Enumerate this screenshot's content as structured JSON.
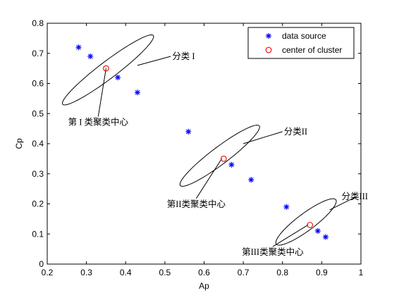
{
  "chart_data": {
    "type": "scatter",
    "xlabel": "Ap",
    "ylabel": "Cp",
    "xlim": [
      0.2,
      1.0
    ],
    "ylim": [
      0.0,
      0.8
    ],
    "xticks": [
      "0.2",
      "0.3",
      "0.4",
      "0.5",
      "0.6",
      "0.7",
      "0.8",
      "0.9",
      "1"
    ],
    "yticks": [
      "0",
      "0.1",
      "0.2",
      "0.3",
      "0.4",
      "0.5",
      "0.6",
      "0.7",
      "0.8"
    ],
    "grid": false,
    "legend_position": "top-right",
    "series": [
      {
        "name": "data source",
        "marker": "asterisk",
        "color": "#0000ff",
        "points": [
          {
            "x": 0.28,
            "y": 0.72
          },
          {
            "x": 0.31,
            "y": 0.69
          },
          {
            "x": 0.38,
            "y": 0.62
          },
          {
            "x": 0.43,
            "y": 0.57
          },
          {
            "x": 0.56,
            "y": 0.44
          },
          {
            "x": 0.67,
            "y": 0.33
          },
          {
            "x": 0.72,
            "y": 0.28
          },
          {
            "x": 0.81,
            "y": 0.19
          },
          {
            "x": 0.89,
            "y": 0.11
          },
          {
            "x": 0.91,
            "y": 0.09
          }
        ]
      },
      {
        "name": "center of cluster",
        "marker": "circle",
        "color": "#ff0000",
        "points": [
          {
            "x": 0.35,
            "y": 0.65
          },
          {
            "x": 0.65,
            "y": 0.35
          },
          {
            "x": 0.87,
            "y": 0.13
          }
        ]
      }
    ],
    "clusters": [
      {
        "label": "分类 I",
        "center_label": "第 I 类聚类中心",
        "center": [
          0.355,
          0.645
        ],
        "a_x": 0.115,
        "a_y": 0.115,
        "b_x": 0.018,
        "b_y": -0.018
      },
      {
        "label": "分类II",
        "center_label": "第II类聚类中心",
        "center": [
          0.64,
          0.36
        ],
        "a_x": 0.1,
        "a_y": 0.1,
        "b_x": 0.018,
        "b_y": -0.018
      },
      {
        "label": "分类III",
        "center_label": "第III类聚类中心",
        "center": [
          0.86,
          0.14
        ],
        "a_x": 0.075,
        "a_y": 0.075,
        "b_x": 0.018,
        "b_y": -0.018
      }
    ],
    "annotations": [
      {
        "text": "分类 I",
        "target": [
          0.43,
          0.66
        ],
        "text_pos": [
          0.515,
          0.69
        ]
      },
      {
        "text": "第 I 类聚类中心",
        "target": [
          0.35,
          0.65
        ],
        "text_pos": [
          0.33,
          0.49
        ]
      },
      {
        "text": "分类II",
        "target": [
          0.7,
          0.4
        ],
        "text_pos": [
          0.8,
          0.44
        ]
      },
      {
        "text": "第II类聚类中心",
        "target": [
          0.645,
          0.35
        ],
        "text_pos": [
          0.58,
          0.218
        ]
      },
      {
        "text": "分类III",
        "target": [
          0.92,
          0.18
        ],
        "text_pos": [
          0.99,
          0.225
        ]
      },
      {
        "text": "第III类聚类中心",
        "target": [
          0.865,
          0.13
        ],
        "text_pos": [
          0.775,
          0.058
        ]
      }
    ]
  }
}
